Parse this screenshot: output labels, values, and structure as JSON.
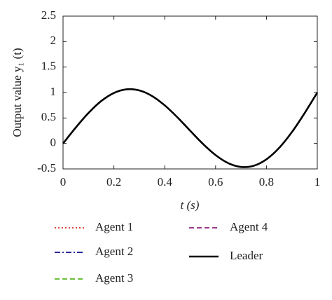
{
  "chart_data": {
    "type": "line",
    "xlabel": "t (s)",
    "ylabel": "Output value y₁ (t)",
    "x": [
      0,
      0.05,
      0.1,
      0.15,
      0.2,
      0.25,
      0.3,
      0.35,
      0.4,
      0.45,
      0.5,
      0.55,
      0.6,
      0.65,
      0.7,
      0.75,
      0.8,
      0.85,
      0.9,
      0.95,
      1
    ],
    "series": [
      {
        "name": "Agent 1",
        "color": "#e0463a",
        "dash": "dotted",
        "values": [
          0,
          0.312,
          0.598,
          0.832,
          0.991,
          1.063,
          1.041,
          0.932,
          0.748,
          0.512,
          0.25,
          -0.007,
          -0.228,
          -0.387,
          -0.461,
          -0.438,
          -0.311,
          -0.087,
          0.222,
          0.594,
          1
        ]
      },
      {
        "name": "Agent 2",
        "color": "#2a2a9a",
        "dash": "dashdot",
        "values": [
          0,
          0.312,
          0.598,
          0.832,
          0.991,
          1.063,
          1.041,
          0.932,
          0.748,
          0.512,
          0.25,
          -0.007,
          -0.228,
          -0.387,
          -0.461,
          -0.438,
          -0.311,
          -0.087,
          0.222,
          0.594,
          1
        ]
      },
      {
        "name": "Agent 3",
        "color": "#6cbf3a",
        "dash": "dashed",
        "values": [
          0,
          0.312,
          0.598,
          0.832,
          0.991,
          1.063,
          1.041,
          0.932,
          0.748,
          0.512,
          0.25,
          -0.007,
          -0.228,
          -0.387,
          -0.461,
          -0.438,
          -0.311,
          -0.087,
          0.222,
          0.594,
          1
        ]
      },
      {
        "name": "Agent 4",
        "color": "#9a3a8a",
        "dash": "dashed",
        "values": [
          0,
          0.312,
          0.598,
          0.832,
          0.991,
          1.063,
          1.041,
          0.932,
          0.748,
          0.512,
          0.25,
          -0.007,
          -0.228,
          -0.387,
          -0.461,
          -0.438,
          -0.311,
          -0.087,
          0.222,
          0.594,
          1
        ]
      },
      {
        "name": "Leader",
        "color": "#000000",
        "dash": "solid",
        "values": [
          0,
          0.312,
          0.598,
          0.832,
          0.991,
          1.063,
          1.041,
          0.932,
          0.748,
          0.512,
          0.25,
          -0.007,
          -0.228,
          -0.387,
          -0.461,
          -0.438,
          -0.311,
          -0.087,
          0.222,
          0.594,
          1
        ]
      }
    ],
    "xlim": [
      0,
      1
    ],
    "xticks": [
      0,
      0.2,
      0.4,
      0.6,
      0.8,
      1
    ],
    "ylim": [
      -0.5,
      2.5
    ],
    "yticks": [
      -0.5,
      0,
      0.5,
      1,
      1.5,
      2,
      2.5
    ],
    "grid": false,
    "legend": "bottom"
  }
}
